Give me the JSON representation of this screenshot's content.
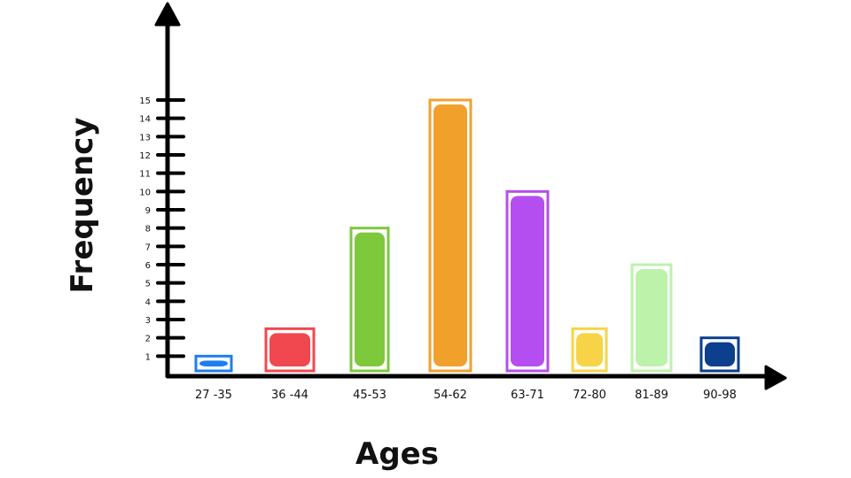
{
  "chart_data": {
    "type": "bar",
    "title": "",
    "xlabel": "Ages",
    "ylabel": "Frequency",
    "categories": [
      "27 -35",
      "36 -44",
      "45-53",
      "54-62",
      "63-71",
      "72-80",
      "81-89",
      "90-98"
    ],
    "values": [
      1,
      2.5,
      8,
      15,
      10,
      2.5,
      6,
      2
    ],
    "yticks": [
      "1",
      "2",
      "3",
      "4",
      "5",
      "6",
      "7",
      "8",
      "9",
      "10",
      "11",
      "12",
      "13",
      "14",
      "15"
    ],
    "ylim": [
      0,
      15
    ],
    "grid": false,
    "legend": "none",
    "colors": [
      "#1e7ef0",
      "#f0484e",
      "#7ec83c",
      "#f2a02c",
      "#b54ef0",
      "#f7d447",
      "#bdf2ab",
      "#0c3f8c"
    ]
  }
}
